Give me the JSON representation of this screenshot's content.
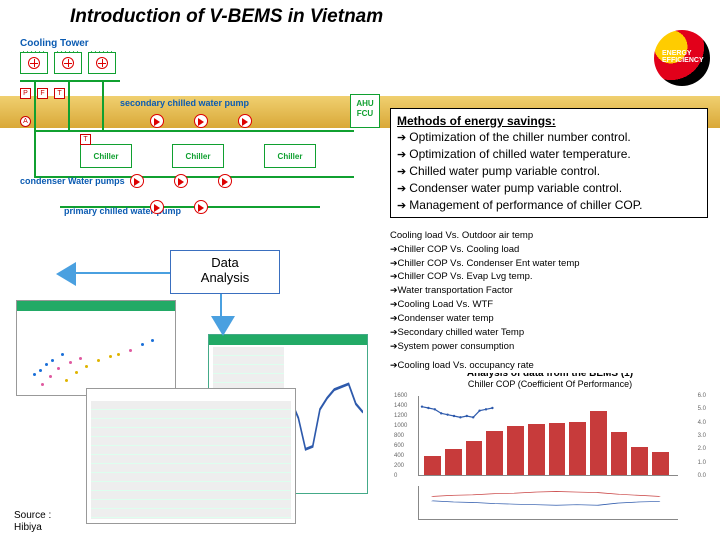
{
  "title": "Introduction of V-BEMS in Vietnam",
  "logo": {
    "text": "ENERGY\nEFFICIENCY"
  },
  "diagram": {
    "cooling_tower": "Cooling Tower",
    "secondary_pump": "secondary chilled water pump",
    "chiller_label": "Chiller",
    "condenser_pump": "condenser Water pumps",
    "primary_pump": "primary chilled water pump",
    "ahu_l1": "AHU",
    "ahu_l2": "FCU",
    "sensors": [
      "P",
      "F",
      "T",
      "A"
    ]
  },
  "callout": {
    "l1": "Data",
    "l2": "Analysis"
  },
  "methods": {
    "hdr": "Methods of energy savings:",
    "items": [
      "Optimization of the chiller number control.",
      "Optimization of chilled water temperature.",
      "Chilled water pump variable control.",
      "Condenser water pump variable control.",
      "Management of performance of chiller COP."
    ]
  },
  "cooling_list": {
    "hdr": "Cooling load Vs. Outdoor air temp",
    "items": [
      "Chiller COP Vs. Cooling load",
      "Chiller COP Vs. Condenser Ent water temp",
      "Chiller COP Vs. Evap Lvg temp.",
      "Water transportation Factor",
      "Cooling Load Vs. WTF",
      "Condenser water temp",
      "Secondary  chilled water Temp",
      "System power consumption"
    ],
    "extra": "Cooling load Vs. occupancy rate"
  },
  "analysis_chart": {
    "title": "Analysis of data from the BEMS (1)",
    "subtitle": "Chiller COP   (Coefficient Of Performance)",
    "bars": [
      390,
      520,
      680,
      900,
      1000,
      1040,
      1060,
      1080,
      1300,
      880,
      560,
      460
    ],
    "bar_color": "#c73b3b",
    "max": 1600,
    "yticks": [
      0,
      200,
      400,
      600,
      800,
      1000,
      1200,
      1400,
      1600
    ],
    "rticks": [
      "6.0",
      "5.0",
      "4.0",
      "3.0",
      "2.0",
      "1.0",
      "0.0"
    ],
    "cop": [
      5.2,
      5.1,
      5.0,
      4.7,
      4.6,
      4.5,
      4.4,
      4.5,
      4.4,
      4.9,
      5.0,
      5.1
    ],
    "cop_max": 6,
    "line_color": "#2e5aac",
    "lower_series": {
      "a_color": "#2e5aac",
      "b_color": "#c73b3b",
      "a": [
        3.3,
        3.1,
        3.0,
        2.8,
        2.7,
        2.6,
        2.5,
        2.6,
        2.5,
        2.9,
        3.1,
        3.2
      ],
      "b": [
        4.1,
        4.3,
        4.4,
        4.6,
        4.7,
        4.9,
        5.0,
        4.9,
        4.8,
        4.5,
        4.3,
        4.1
      ],
      "max": 6
    }
  },
  "scatter1": {
    "colors": [
      "#1a6fd8",
      "#e05aa0",
      "#e0b400"
    ],
    "points": [
      [
        12,
        60,
        "#1a6fd8"
      ],
      [
        18,
        56,
        "#1a6fd8"
      ],
      [
        24,
        50,
        "#1a6fd8"
      ],
      [
        30,
        46,
        "#1a6fd8"
      ],
      [
        40,
        40,
        "#1a6fd8"
      ],
      [
        20,
        70,
        "#e05aa0"
      ],
      [
        28,
        62,
        "#e05aa0"
      ],
      [
        36,
        54,
        "#e05aa0"
      ],
      [
        48,
        48,
        "#e05aa0"
      ],
      [
        58,
        44,
        "#e05aa0"
      ],
      [
        44,
        66,
        "#e0b400"
      ],
      [
        54,
        58,
        "#e0b400"
      ],
      [
        64,
        52,
        "#e0b400"
      ],
      [
        76,
        46,
        "#e0b400"
      ],
      [
        88,
        42,
        "#e0b400"
      ],
      [
        96,
        40,
        "#e0b400"
      ],
      [
        108,
        36,
        "#e05aa0"
      ],
      [
        120,
        30,
        "#1a6fd8"
      ],
      [
        130,
        26,
        "#1a6fd8"
      ]
    ]
  },
  "mini3_line": {
    "color": "#2e5aac",
    "y": [
      40,
      38,
      50,
      72,
      70,
      44,
      36,
      30,
      28,
      26,
      40,
      46
    ]
  },
  "source": {
    "l1": "Source :",
    "l2": "Hibiya"
  }
}
